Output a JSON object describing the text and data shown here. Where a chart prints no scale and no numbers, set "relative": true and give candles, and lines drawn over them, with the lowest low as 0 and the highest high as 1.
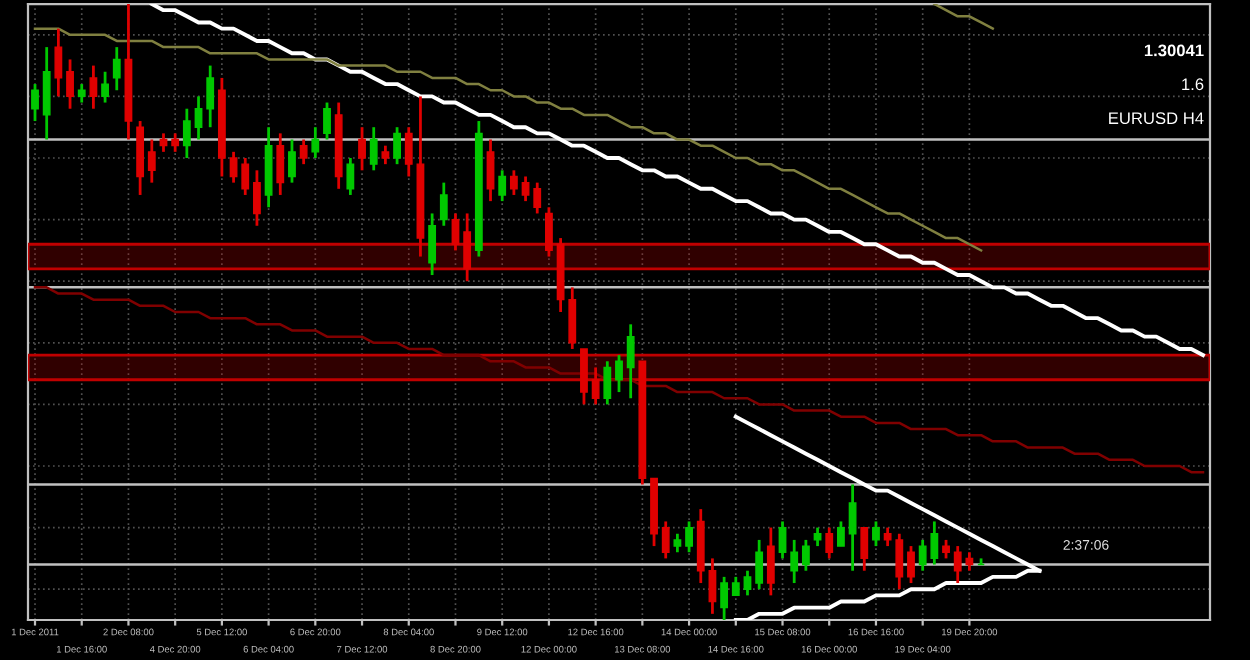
{
  "chart_data": {
    "type": "candlestick",
    "relative": true,
    "grid": true,
    "legend": false,
    "colors": [
      "#00c800",
      "#00c800",
      "#e00000",
      "#e00000",
      "#00c800",
      "#e00000",
      "#00c800",
      "#00c800",
      "#e00000",
      "#e00000",
      "#e00000",
      "#e00000",
      "#e00000",
      "#00c800",
      "#00c800",
      "#00c800",
      "#e00000",
      "#e00000",
      "#e00000",
      "#e00000",
      "#00c800",
      "#e00000",
      "#00c800",
      "#e00000",
      "#00c800",
      "#00c800",
      "#e00000",
      "#00c800",
      "#e00000",
      "#00c800",
      "#e00000",
      "#00c800",
      "#e00000",
      "#e00000",
      "#00c800",
      "#00c800",
      "#e00000",
      "#e00000",
      "#00c800",
      "#e00000",
      "#00c800",
      "#e00000",
      "#e00000",
      "#e00000",
      "#e00000",
      "#e00000",
      "#e00000",
      "#e00000",
      "#e00000",
      "#00c800",
      "#00c800",
      "#00c800",
      "#e00000",
      "#e00000",
      "#e00000",
      "#00c800",
      "#00c800",
      "#e00000",
      "#e00000",
      "#00c800",
      "#00c800",
      "#00c800",
      "#00c800",
      "#e00000",
      "#00c800",
      "#00c800",
      "#00c800",
      "#00c800",
      "#e00000",
      "#00c800",
      "#00c800",
      "#e00000",
      "#00c800",
      "#e00000",
      "#e00000",
      "#e00000",
      "#00c800",
      "#00c800",
      "#e00000",
      "#e00000",
      "#e00000",
      "#00c800",
      null,
      null,
      null,
      null,
      null,
      null,
      null,
      null,
      null,
      null,
      null,
      null,
      null,
      null,
      null,
      null,
      null,
      null,
      null
    ],
    "categories": [
      "1 Dec 2011",
      null,
      null,
      null,
      "1 Dec 16:00",
      null,
      null,
      null,
      "2 Dec 08:00",
      null,
      null,
      null,
      "4 Dec 20:00",
      null,
      null,
      null,
      "5 Dec 12:00",
      null,
      null,
      null,
      "6 Dec 04:00",
      null,
      null,
      null,
      "6 Dec 20:00",
      null,
      null,
      null,
      "7 Dec 12:00",
      null,
      null,
      null,
      "8 Dec 04:00",
      null,
      null,
      null,
      "8 Dec 20:00",
      null,
      null,
      null,
      "9 Dec 12:00",
      null,
      null,
      null,
      "12 Dec 00:00",
      null,
      null,
      null,
      "12 Dec 16:00",
      null,
      null,
      null,
      "13 Dec 08:00",
      null,
      null,
      null,
      "14 Dec 00:00",
      null,
      null,
      null,
      "14 Dec 16:00",
      null,
      null,
      null,
      "15 Dec 08:00",
      null,
      null,
      null,
      "16 Dec 00:00",
      null,
      null,
      null,
      "16 Dec 16:00",
      null,
      null,
      null,
      "19 Dec 04:00",
      null,
      null,
      null,
      "19 Dec 20:00",
      null,
      null,
      null,
      null,
      null,
      null,
      null,
      null,
      null,
      null,
      null,
      null,
      null,
      null,
      null,
      null,
      null,
      null,
      null,
      null
    ],
    "ohlc": [
      [
        0.83,
        0.87,
        0.81,
        0.86
      ],
      [
        0.82,
        0.93,
        0.78,
        0.89
      ],
      [
        0.93,
        0.96,
        0.85,
        0.88
      ],
      [
        0.89,
        0.91,
        0.83,
        0.85
      ],
      [
        0.85,
        0.87,
        0.84,
        0.86
      ],
      [
        0.88,
        0.9,
        0.83,
        0.85
      ],
      [
        0.85,
        0.89,
        0.84,
        0.87
      ],
      [
        0.88,
        0.93,
        0.86,
        0.91
      ],
      [
        0.91,
        1.0,
        0.78,
        0.81
      ],
      [
        0.8,
        0.81,
        0.69,
        0.72
      ],
      [
        0.76,
        0.78,
        0.71,
        0.73
      ],
      [
        0.78,
        0.79,
        0.76,
        0.77
      ],
      [
        0.78,
        0.79,
        0.76,
        0.77
      ],
      [
        0.77,
        0.83,
        0.75,
        0.81
      ],
      [
        0.8,
        0.85,
        0.78,
        0.83
      ],
      [
        0.83,
        0.9,
        0.8,
        0.88
      ],
      [
        0.86,
        0.88,
        0.72,
        0.75
      ],
      [
        0.75,
        0.76,
        0.71,
        0.72
      ],
      [
        0.74,
        0.75,
        0.69,
        0.7
      ],
      [
        0.71,
        0.73,
        0.64,
        0.66
      ],
      [
        0.69,
        0.8,
        0.67,
        0.77
      ],
      [
        0.77,
        0.79,
        0.69,
        0.71
      ],
      [
        0.72,
        0.78,
        0.71,
        0.76
      ],
      [
        0.77,
        0.78,
        0.74,
        0.75
      ],
      [
        0.76,
        0.8,
        0.75,
        0.78
      ],
      [
        0.79,
        0.84,
        0.78,
        0.83
      ],
      [
        0.82,
        0.84,
        0.7,
        0.72
      ],
      [
        0.7,
        0.75,
        0.69,
        0.74
      ],
      [
        0.78,
        0.8,
        0.73,
        0.75
      ],
      [
        0.74,
        0.8,
        0.73,
        0.78
      ],
      [
        0.76,
        0.77,
        0.74,
        0.75
      ],
      [
        0.75,
        0.8,
        0.74,
        0.79
      ],
      [
        0.79,
        0.8,
        0.72,
        0.74
      ],
      [
        0.74,
        0.85,
        0.59,
        0.62
      ],
      [
        0.58,
        0.66,
        0.56,
        0.64
      ],
      [
        0.65,
        0.71,
        0.64,
        0.69
      ],
      [
        0.65,
        0.66,
        0.6,
        0.61
      ],
      [
        0.63,
        0.66,
        0.55,
        0.57
      ],
      [
        0.6,
        0.81,
        0.59,
        0.79
      ],
      [
        0.76,
        0.78,
        0.68,
        0.7
      ],
      [
        0.69,
        0.73,
        0.68,
        0.72
      ],
      [
        0.72,
        0.73,
        0.69,
        0.7
      ],
      [
        0.71,
        0.72,
        0.68,
        0.69
      ],
      [
        0.7,
        0.71,
        0.66,
        0.67
      ],
      [
        0.66,
        0.67,
        0.59,
        0.6
      ],
      [
        0.61,
        0.62,
        0.5,
        0.52
      ],
      [
        0.52,
        0.54,
        0.44,
        0.45
      ],
      [
        0.44,
        0.44,
        0.35,
        0.37
      ],
      [
        0.39,
        0.41,
        0.35,
        0.36
      ],
      [
        0.36,
        0.42,
        0.35,
        0.41
      ],
      [
        0.39,
        0.43,
        0.37,
        0.42
      ],
      [
        0.41,
        0.48,
        0.36,
        0.46
      ],
      [
        0.42,
        0.42,
        0.22,
        0.23
      ],
      [
        0.23,
        0.23,
        0.12,
        0.14
      ],
      [
        0.15,
        0.16,
        0.1,
        0.11
      ],
      [
        0.12,
        0.14,
        0.11,
        0.13
      ],
      [
        0.12,
        0.16,
        0.11,
        0.15
      ],
      [
        0.16,
        0.18,
        0.06,
        0.08
      ],
      [
        0.08,
        0.1,
        0.01,
        0.03
      ],
      [
        0.02,
        0.07,
        0.0,
        0.06
      ],
      [
        0.04,
        0.07,
        0.04,
        0.06
      ],
      [
        0.05,
        0.08,
        0.04,
        0.07
      ],
      [
        0.06,
        0.13,
        0.05,
        0.11
      ],
      [
        0.12,
        0.15,
        0.04,
        0.06
      ],
      [
        0.11,
        0.16,
        0.1,
        0.15
      ],
      [
        0.08,
        0.13,
        0.06,
        0.11
      ],
      [
        0.09,
        0.13,
        0.08,
        0.12
      ],
      [
        0.13,
        0.15,
        0.12,
        0.14
      ],
      [
        0.14,
        0.15,
        0.1,
        0.11
      ],
      [
        0.12,
        0.16,
        0.12,
        0.15
      ],
      [
        0.14,
        0.22,
        0.08,
        0.19
      ],
      [
        0.15,
        0.15,
        0.08,
        0.1
      ],
      [
        0.13,
        0.16,
        0.12,
        0.15
      ],
      [
        0.14,
        0.15,
        0.12,
        0.13
      ],
      [
        0.13,
        0.14,
        0.05,
        0.07
      ],
      [
        0.11,
        0.12,
        0.06,
        0.07
      ],
      [
        0.09,
        0.13,
        0.08,
        0.12
      ],
      [
        0.1,
        0.16,
        0.09,
        0.14
      ],
      [
        0.12,
        0.13,
        0.1,
        0.11
      ],
      [
        0.11,
        0.12,
        0.06,
        0.08
      ],
      [
        0.1,
        0.11,
        0.08,
        0.09
      ],
      [
        0.09,
        0.1,
        0.09,
        0.09
      ],
      null,
      null,
      null,
      null,
      null,
      null,
      null,
      null,
      null,
      null,
      null,
      null,
      null,
      null,
      null,
      null,
      null,
      null,
      null
    ],
    "series": [
      {
        "type": "line",
        "color": "#ffffff",
        "values": [
          null,
          null,
          null,
          null,
          null,
          null,
          null,
          null,
          null,
          null,
          1.0,
          0.99,
          0.99,
          0.98,
          0.97,
          0.97,
          0.96,
          0.96,
          0.95,
          0.94,
          0.94,
          0.93,
          0.92,
          0.92,
          0.91,
          0.91,
          0.9,
          0.89,
          0.89,
          0.88,
          0.87,
          0.87,
          0.86,
          0.85,
          0.85,
          0.84,
          0.84,
          0.83,
          0.82,
          0.82,
          0.81,
          0.8,
          0.8,
          0.79,
          0.79,
          0.78,
          0.77,
          0.77,
          0.76,
          0.75,
          0.75,
          0.74,
          0.73,
          0.73,
          0.72,
          0.72,
          0.71,
          0.7,
          0.7,
          0.69,
          0.68,
          0.68,
          0.67,
          0.66,
          0.66,
          0.65,
          0.65,
          0.64,
          0.63,
          0.63,
          0.62,
          0.61,
          0.61,
          0.6,
          0.59,
          0.59,
          0.58,
          0.58,
          0.57,
          0.56,
          0.56,
          0.55,
          0.54,
          0.54,
          0.53,
          0.53,
          0.52,
          0.51,
          0.51,
          0.5,
          0.49,
          0.49,
          0.48,
          0.47,
          0.47,
          0.46,
          0.46,
          0.45,
          0.44,
          0.44,
          0.43
        ]
      },
      {
        "type": "line",
        "color": "#ffffff",
        "values": [
          null,
          null,
          null,
          null,
          null,
          null,
          null,
          null,
          null,
          null,
          null,
          null,
          null,
          null,
          null,
          null,
          null,
          null,
          null,
          null,
          null,
          null,
          null,
          null,
          null,
          null,
          null,
          null,
          null,
          null,
          null,
          null,
          null,
          null,
          null,
          null,
          null,
          null,
          null,
          null,
          null,
          null,
          null,
          null,
          null,
          null,
          null,
          null,
          null,
          null,
          null,
          null,
          null,
          null,
          null,
          null,
          null,
          null,
          null,
          null,
          0.33,
          0.32,
          0.31,
          0.3,
          0.29,
          0.28,
          0.27,
          0.26,
          0.25,
          0.24,
          0.23,
          0.22,
          0.21,
          0.21,
          0.2,
          0.19,
          0.18,
          0.17,
          0.16,
          0.15,
          0.14,
          0.13,
          0.12,
          0.11,
          0.1,
          0.09,
          0.08,
          null,
          null,
          null,
          null,
          null,
          null,
          null,
          null,
          null,
          null,
          null,
          null,
          null,
          null
        ]
      },
      {
        "type": "line",
        "color": "#ffffff",
        "values": [
          null,
          null,
          null,
          null,
          null,
          null,
          null,
          null,
          null,
          null,
          null,
          null,
          null,
          null,
          null,
          null,
          null,
          null,
          null,
          null,
          null,
          null,
          null,
          null,
          null,
          null,
          null,
          null,
          null,
          null,
          null,
          null,
          null,
          null,
          null,
          null,
          null,
          null,
          null,
          null,
          null,
          null,
          null,
          null,
          null,
          null,
          null,
          null,
          null,
          null,
          null,
          null,
          null,
          null,
          null,
          null,
          null,
          null,
          null,
          null,
          0.0,
          0.0,
          0.01,
          0.01,
          0.01,
          0.02,
          0.02,
          0.02,
          0.02,
          0.03,
          0.03,
          0.03,
          0.04,
          0.04,
          0.04,
          0.05,
          0.05,
          0.05,
          0.06,
          0.06,
          0.06,
          0.06,
          0.07,
          0.07,
          0.07,
          0.08,
          0.08,
          null,
          null,
          null,
          null,
          null,
          null,
          null,
          null,
          null,
          null,
          null,
          null,
          null,
          null
        ]
      },
      {
        "type": "line",
        "color": "#808040",
        "values": [
          0.96,
          0.96,
          0.96,
          0.95,
          0.95,
          0.95,
          0.95,
          0.94,
          0.94,
          0.94,
          0.94,
          0.93,
          0.93,
          0.93,
          0.93,
          0.92,
          0.92,
          0.92,
          0.92,
          0.92,
          0.91,
          0.91,
          0.91,
          0.91,
          0.91,
          0.91,
          0.9,
          0.9,
          0.9,
          0.9,
          0.9,
          0.89,
          0.89,
          0.89,
          0.88,
          0.88,
          0.88,
          0.87,
          0.87,
          0.86,
          0.86,
          0.85,
          0.85,
          0.84,
          0.84,
          0.83,
          0.83,
          0.82,
          0.82,
          0.82,
          0.81,
          0.8,
          0.8,
          0.79,
          0.79,
          0.78,
          0.78,
          0.77,
          0.77,
          0.76,
          0.75,
          0.75,
          0.74,
          0.74,
          0.73,
          0.73,
          0.72,
          0.71,
          0.7,
          0.7,
          0.69,
          0.68,
          0.67,
          0.66,
          0.66,
          0.65,
          0.64,
          0.63,
          0.62,
          0.62,
          0.61,
          0.6,
          null,
          null,
          null,
          null,
          null,
          null,
          null,
          null,
          null,
          null,
          null,
          null,
          null,
          null,
          null,
          null,
          null,
          null,
          null
        ]
      },
      {
        "type": "line",
        "color": "#808040",
        "values": [
          null,
          null,
          null,
          null,
          null,
          null,
          null,
          null,
          null,
          null,
          null,
          null,
          null,
          null,
          null,
          null,
          null,
          null,
          null,
          null,
          null,
          null,
          null,
          null,
          null,
          null,
          null,
          null,
          null,
          null,
          null,
          null,
          null,
          null,
          null,
          null,
          null,
          null,
          null,
          null,
          null,
          null,
          null,
          null,
          null,
          null,
          null,
          null,
          null,
          null,
          null,
          null,
          null,
          null,
          null,
          null,
          null,
          null,
          null,
          null,
          null,
          null,
          null,
          null,
          null,
          null,
          null,
          null,
          null,
          null,
          null,
          null,
          null,
          null,
          null,
          null,
          null,
          1.0,
          0.99,
          0.98,
          0.98,
          0.97,
          0.96,
          null,
          null,
          null,
          null,
          null,
          null,
          null,
          null,
          null,
          null,
          null,
          null,
          null,
          null,
          null,
          null,
          null,
          null
        ]
      },
      {
        "type": "line",
        "color": "#800000",
        "values": [
          0.54,
          0.54,
          0.53,
          0.53,
          0.53,
          0.52,
          0.52,
          0.52,
          0.52,
          0.51,
          0.51,
          0.51,
          0.5,
          0.5,
          0.5,
          0.49,
          0.49,
          0.49,
          0.49,
          0.48,
          0.48,
          0.48,
          0.47,
          0.47,
          0.47,
          0.46,
          0.46,
          0.46,
          0.46,
          0.45,
          0.45,
          0.45,
          0.44,
          0.44,
          0.44,
          0.43,
          0.43,
          0.43,
          0.43,
          0.42,
          0.42,
          0.42,
          0.41,
          0.41,
          0.41,
          0.4,
          0.4,
          0.4,
          0.4,
          0.39,
          0.39,
          0.39,
          0.38,
          0.38,
          0.38,
          0.37,
          0.37,
          0.37,
          0.37,
          0.36,
          0.36,
          0.36,
          0.35,
          0.35,
          0.35,
          0.34,
          0.34,
          0.34,
          0.34,
          0.33,
          0.33,
          0.33,
          0.32,
          0.32,
          0.32,
          0.31,
          0.31,
          0.31,
          0.31,
          0.3,
          0.3,
          0.3,
          0.29,
          0.29,
          0.29,
          0.28,
          0.28,
          0.28,
          0.28,
          0.27,
          0.27,
          0.27,
          0.26,
          0.26,
          0.26,
          0.25,
          0.25,
          0.25,
          0.25,
          0.24,
          0.24
        ]
      }
    ],
    "ref_lines": [
      {
        "axis": "y",
        "value": 1.0,
        "color": "#c0c0c0"
      },
      {
        "axis": "y",
        "value": 0.78,
        "color": "#c0c0c0"
      },
      {
        "axis": "y",
        "value": 0.54,
        "color": "#c0c0c0"
      },
      {
        "axis": "y",
        "value": 0.22,
        "color": "#c0c0c0"
      },
      {
        "axis": "y",
        "value": 0.09,
        "color": "#c0c0c0"
      }
    ],
    "bands": [
      {
        "axis": "y",
        "from": 0.57,
        "to": 0.61,
        "color": "#c00000"
      },
      {
        "axis": "y",
        "from": 0.39,
        "to": 0.43,
        "color": "#c00000"
      }
    ],
    "annotations": [
      "1.30041",
      "1.6",
      "EURUSD H4",
      "2:37:06"
    ]
  }
}
